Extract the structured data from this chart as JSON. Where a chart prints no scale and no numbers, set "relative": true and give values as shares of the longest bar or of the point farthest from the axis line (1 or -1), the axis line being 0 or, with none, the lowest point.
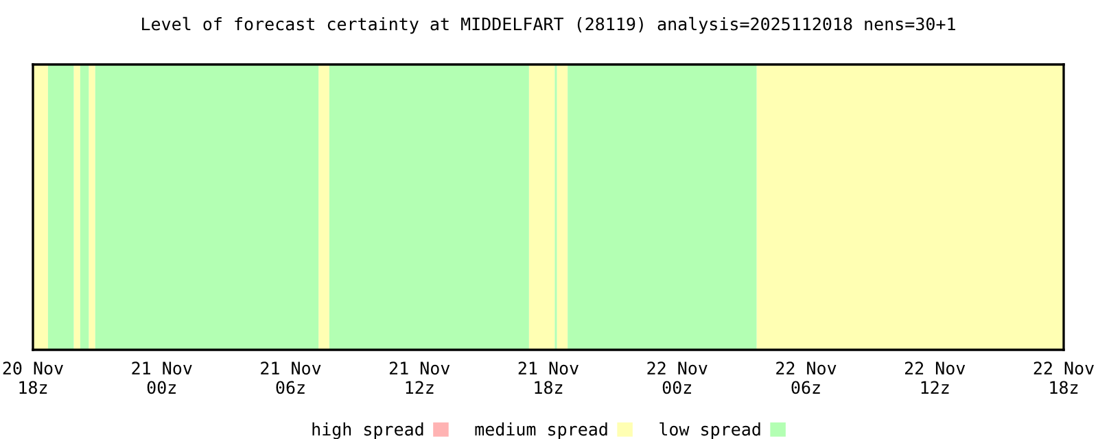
{
  "chart_data": {
    "type": "area",
    "relative": true,
    "title": "Level of forecast certainty at MIDDELFART (28119) analysis=2025112018 nens=30+1",
    "xlim": [
      "2025-11-20T18:00",
      "2025-11-22T18:00"
    ],
    "xticks": [
      {
        "value": "2025-11-20T18:00",
        "label": "20 Nov\n18z"
      },
      {
        "value": "2025-11-21T00:00",
        "label": "21 Nov\n00z"
      },
      {
        "value": "2025-11-21T06:00",
        "label": "21 Nov\n06z"
      },
      {
        "value": "2025-11-21T12:00",
        "label": "21 Nov\n12z"
      },
      {
        "value": "2025-11-21T18:00",
        "label": "21 Nov\n18z"
      },
      {
        "value": "2025-11-22T00:00",
        "label": "22 Nov\n00z"
      },
      {
        "value": "2025-11-22T06:00",
        "label": "22 Nov\n06z"
      },
      {
        "value": "2025-11-22T12:00",
        "label": "22 Nov\n12z"
      },
      {
        "value": "2025-11-22T18:00",
        "label": "22 Nov\n18z"
      }
    ],
    "legend": "bottom",
    "series": [
      {
        "name": "high spread",
        "color": "#ffb3b3"
      },
      {
        "name": "medium spread",
        "color": "#ffffb3",
        "x": [
          "2025-11-20T18:00",
          "2025-11-20T18:42",
          "2025-11-20T18:42",
          "2025-11-20T19:54",
          "2025-11-20T19:54",
          "2025-11-20T20:12",
          "2025-11-20T20:12",
          "2025-11-20T20:36",
          "2025-11-20T20:36",
          "2025-11-20T20:54",
          "2025-11-20T20:54",
          "2025-11-21T07:18",
          "2025-11-21T07:18",
          "2025-11-21T07:48",
          "2025-11-21T07:48",
          "2025-11-21T17:06",
          "2025-11-21T17:06",
          "2025-11-21T18:18",
          "2025-11-21T18:18",
          "2025-11-21T18:24",
          "2025-11-21T18:24",
          "2025-11-21T18:54",
          "2025-11-21T18:54",
          "2025-11-22T03:42",
          "2025-11-22T03:42",
          "2025-11-22T18:00"
        ],
        "values": [
          1,
          1,
          0,
          0,
          1,
          1,
          0,
          0,
          1,
          1,
          0,
          0,
          1,
          1,
          0,
          0,
          1,
          1,
          0,
          0,
          1,
          1,
          0,
          0,
          1,
          1
        ]
      },
      {
        "name": "low spread",
        "color": "#b3ffb3",
        "x": [
          "2025-11-20T18:42",
          "2025-11-20T19:54",
          "2025-11-20T19:54",
          "2025-11-20T20:12",
          "2025-11-20T20:12",
          "2025-11-20T20:36",
          "2025-11-20T20:36",
          "2025-11-20T20:54",
          "2025-11-20T20:54",
          "2025-11-21T07:18",
          "2025-11-21T07:18",
          "2025-11-21T07:48",
          "2025-11-21T07:48",
          "2025-11-21T17:06",
          "2025-11-21T17:06",
          "2025-11-21T18:18",
          "2025-11-21T18:18",
          "2025-11-21T18:24",
          "2025-11-21T18:24",
          "2025-11-21T18:54",
          "2025-11-21T18:54",
          "2025-11-22T03:42"
        ],
        "values": [
          1,
          1,
          0,
          0,
          1,
          1,
          0,
          0,
          1,
          1,
          0,
          0,
          1,
          1,
          0,
          0,
          1,
          1,
          0,
          0,
          1,
          1
        ]
      }
    ]
  }
}
